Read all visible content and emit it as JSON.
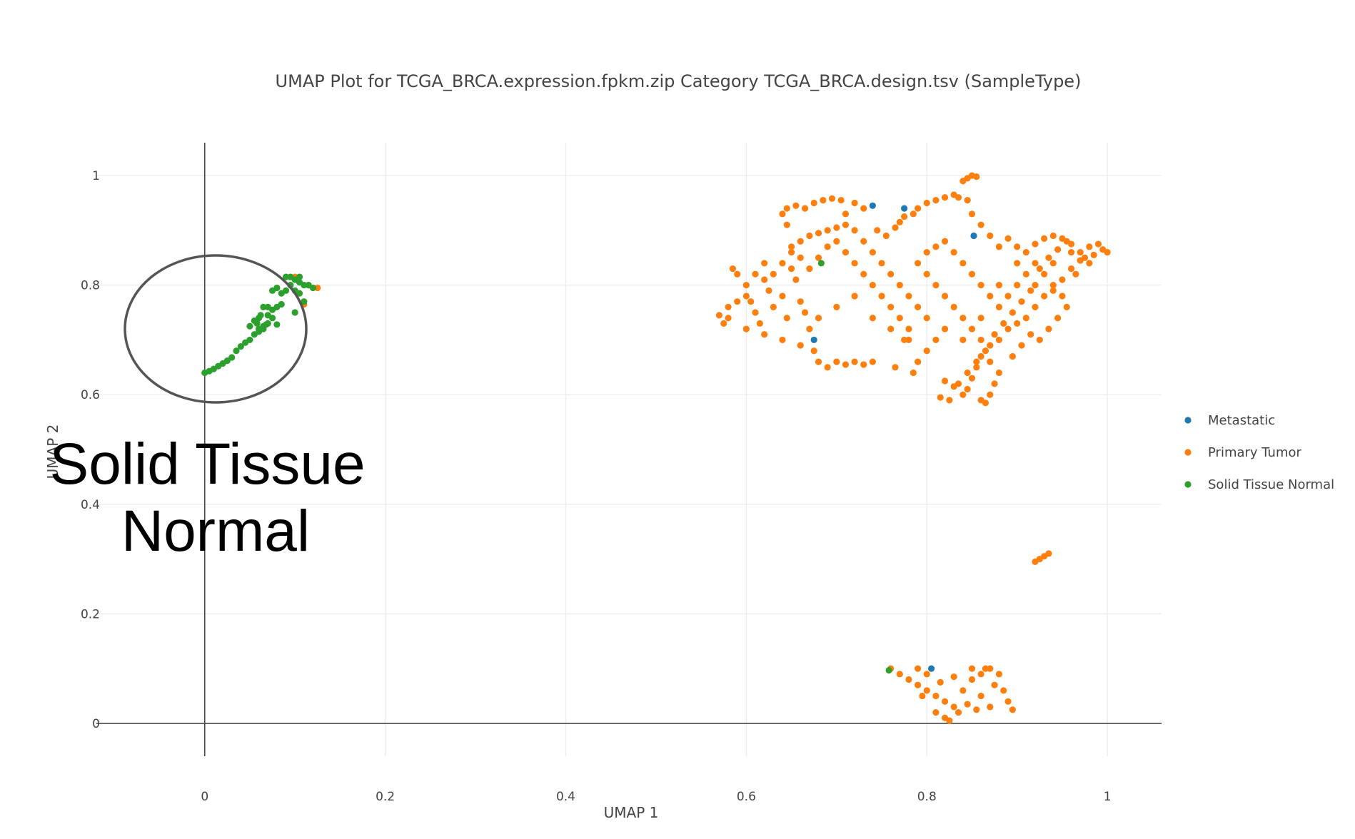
{
  "chart_data": {
    "type": "scatter",
    "title": "UMAP Plot for TCGA_BRCA.expression.fpkm.zip Category TCGA_BRCA.design.tsv (SampleType)",
    "xlabel": "UMAP 1",
    "ylabel": "UMAP 2",
    "xlim": [
      -0.12,
      1.06
    ],
    "ylim": [
      -0.06,
      1.06
    ],
    "x_ticks": [
      0,
      0.2,
      0.4,
      0.6,
      0.8,
      1
    ],
    "x_tick_labels": [
      "0",
      "0.2",
      "0.4",
      "0.6",
      "0.8",
      "1"
    ],
    "y_ticks": [
      0,
      0.2,
      0.4,
      0.6,
      0.8,
      1
    ],
    "y_tick_labels": [
      "0",
      "0.2",
      "0.4",
      "0.6",
      "0.8",
      "1"
    ],
    "grid": true,
    "legend_position": "right",
    "series": [
      {
        "name": "Metastatic",
        "color": "#1f77b4",
        "points": [
          [
            0.675,
            0.7
          ],
          [
            0.775,
            0.94
          ],
          [
            0.805,
            0.1
          ],
          [
            0.852,
            0.89
          ],
          [
            0.74,
            0.945
          ]
        ]
      },
      {
        "name": "Primary Tumor",
        "color": "#ff7f0e",
        "points": [
          [
            0.1,
            0.815
          ],
          [
            0.125,
            0.795
          ],
          [
            0.11,
            0.765
          ],
          [
            0.115,
            0.8
          ],
          [
            0.925,
            0.3
          ],
          [
            0.93,
            0.305
          ],
          [
            0.935,
            0.31
          ],
          [
            0.92,
            0.295
          ],
          [
            0.76,
            0.1
          ],
          [
            0.77,
            0.09
          ],
          [
            0.78,
            0.08
          ],
          [
            0.79,
            0.07
          ],
          [
            0.8,
            0.06
          ],
          [
            0.81,
            0.05
          ],
          [
            0.82,
            0.04
          ],
          [
            0.83,
            0.03
          ],
          [
            0.82,
            0.01
          ],
          [
            0.825,
            0.005
          ],
          [
            0.835,
            0.02
          ],
          [
            0.84,
            0.06
          ],
          [
            0.85,
            0.08
          ],
          [
            0.86,
            0.09
          ],
          [
            0.87,
            0.1
          ],
          [
            0.88,
            0.09
          ],
          [
            0.885,
            0.06
          ],
          [
            0.89,
            0.04
          ],
          [
            0.895,
            0.025
          ],
          [
            0.86,
            0.05
          ],
          [
            0.845,
            0.035
          ],
          [
            0.8,
            0.09
          ],
          [
            0.79,
            0.1
          ],
          [
            0.815,
            0.075
          ],
          [
            0.87,
            0.03
          ],
          [
            0.875,
            0.07
          ],
          [
            0.855,
            0.025
          ],
          [
            0.865,
            0.1
          ],
          [
            0.81,
            0.02
          ],
          [
            0.795,
            0.05
          ],
          [
            0.83,
            0.085
          ],
          [
            0.85,
            0.1
          ],
          [
            0.57,
            0.745
          ],
          [
            0.58,
            0.76
          ],
          [
            0.585,
            0.83
          ],
          [
            0.59,
            0.82
          ],
          [
            0.6,
            0.8
          ],
          [
            0.605,
            0.77
          ],
          [
            0.61,
            0.75
          ],
          [
            0.615,
            0.73
          ],
          [
            0.62,
            0.81
          ],
          [
            0.625,
            0.79
          ],
          [
            0.63,
            0.76
          ],
          [
            0.64,
            0.78
          ],
          [
            0.645,
            0.74
          ],
          [
            0.65,
            0.83
          ],
          [
            0.655,
            0.81
          ],
          [
            0.66,
            0.77
          ],
          [
            0.665,
            0.75
          ],
          [
            0.67,
            0.72
          ],
          [
            0.675,
            0.68
          ],
          [
            0.68,
            0.66
          ],
          [
            0.69,
            0.65
          ],
          [
            0.7,
            0.66
          ],
          [
            0.71,
            0.655
          ],
          [
            0.72,
            0.66
          ],
          [
            0.73,
            0.655
          ],
          [
            0.74,
            0.66
          ],
          [
            0.765,
            0.65
          ],
          [
            0.775,
            0.7
          ],
          [
            0.78,
            0.72
          ],
          [
            0.77,
            0.74
          ],
          [
            0.76,
            0.76
          ],
          [
            0.75,
            0.78
          ],
          [
            0.74,
            0.8
          ],
          [
            0.73,
            0.82
          ],
          [
            0.72,
            0.84
          ],
          [
            0.71,
            0.86
          ],
          [
            0.7,
            0.88
          ],
          [
            0.69,
            0.87
          ],
          [
            0.68,
            0.85
          ],
          [
            0.67,
            0.83
          ],
          [
            0.66,
            0.85
          ],
          [
            0.65,
            0.87
          ],
          [
            0.645,
            0.91
          ],
          [
            0.64,
            0.93
          ],
          [
            0.645,
            0.94
          ],
          [
            0.655,
            0.945
          ],
          [
            0.665,
            0.94
          ],
          [
            0.675,
            0.95
          ],
          [
            0.685,
            0.955
          ],
          [
            0.695,
            0.958
          ],
          [
            0.705,
            0.955
          ],
          [
            0.71,
            0.93
          ],
          [
            0.72,
            0.95
          ],
          [
            0.73,
            0.94
          ],
          [
            0.745,
            0.9
          ],
          [
            0.755,
            0.89
          ],
          [
            0.765,
            0.905
          ],
          [
            0.77,
            0.915
          ],
          [
            0.775,
            0.925
          ],
          [
            0.785,
            0.93
          ],
          [
            0.79,
            0.94
          ],
          [
            0.8,
            0.95
          ],
          [
            0.81,
            0.955
          ],
          [
            0.82,
            0.96
          ],
          [
            0.83,
            0.965
          ],
          [
            0.84,
            0.99
          ],
          [
            0.845,
            0.995
          ],
          [
            0.85,
            1.0
          ],
          [
            0.855,
            0.998
          ],
          [
            0.835,
            0.96
          ],
          [
            0.845,
            0.955
          ],
          [
            0.85,
            0.93
          ],
          [
            0.86,
            0.91
          ],
          [
            0.87,
            0.89
          ],
          [
            0.88,
            0.87
          ],
          [
            0.89,
            0.885
          ],
          [
            0.9,
            0.87
          ],
          [
            0.91,
            0.86
          ],
          [
            0.92,
            0.875
          ],
          [
            0.93,
            0.885
          ],
          [
            0.94,
            0.89
          ],
          [
            0.95,
            0.885
          ],
          [
            0.96,
            0.875
          ],
          [
            0.97,
            0.86
          ],
          [
            0.98,
            0.87
          ],
          [
            0.99,
            0.875
          ],
          [
            0.995,
            0.865
          ],
          [
            1.0,
            0.86
          ],
          [
            0.985,
            0.855
          ],
          [
            0.975,
            0.85
          ],
          [
            0.96,
            0.83
          ],
          [
            0.95,
            0.81
          ],
          [
            0.94,
            0.79
          ],
          [
            0.93,
            0.78
          ],
          [
            0.92,
            0.76
          ],
          [
            0.91,
            0.74
          ],
          [
            0.9,
            0.73
          ],
          [
            0.89,
            0.72
          ],
          [
            0.88,
            0.7
          ],
          [
            0.87,
            0.69
          ],
          [
            0.86,
            0.67
          ],
          [
            0.855,
            0.65
          ],
          [
            0.85,
            0.63
          ],
          [
            0.845,
            0.61
          ],
          [
            0.84,
            0.6
          ],
          [
            0.83,
            0.615
          ],
          [
            0.82,
            0.625
          ],
          [
            0.815,
            0.595
          ],
          [
            0.825,
            0.59
          ],
          [
            0.86,
            0.59
          ],
          [
            0.865,
            0.585
          ],
          [
            0.87,
            0.6
          ],
          [
            0.875,
            0.62
          ],
          [
            0.88,
            0.64
          ],
          [
            0.87,
            0.66
          ],
          [
            0.86,
            0.7
          ],
          [
            0.85,
            0.72
          ],
          [
            0.84,
            0.74
          ],
          [
            0.83,
            0.76
          ],
          [
            0.82,
            0.78
          ],
          [
            0.81,
            0.8
          ],
          [
            0.8,
            0.82
          ],
          [
            0.79,
            0.84
          ],
          [
            0.8,
            0.86
          ],
          [
            0.81,
            0.87
          ],
          [
            0.82,
            0.88
          ],
          [
            0.83,
            0.86
          ],
          [
            0.84,
            0.84
          ],
          [
            0.85,
            0.82
          ],
          [
            0.86,
            0.8
          ],
          [
            0.87,
            0.78
          ],
          [
            0.88,
            0.76
          ],
          [
            0.89,
            0.78
          ],
          [
            0.9,
            0.8
          ],
          [
            0.91,
            0.82
          ],
          [
            0.92,
            0.84
          ],
          [
            0.93,
            0.82
          ],
          [
            0.94,
            0.8
          ],
          [
            0.95,
            0.78
          ],
          [
            0.955,
            0.76
          ],
          [
            0.945,
            0.74
          ],
          [
            0.935,
            0.72
          ],
          [
            0.925,
            0.7
          ],
          [
            0.915,
            0.71
          ],
          [
            0.905,
            0.69
          ],
          [
            0.895,
            0.67
          ],
          [
            0.81,
            0.7
          ],
          [
            0.8,
            0.68
          ],
          [
            0.79,
            0.66
          ],
          [
            0.785,
            0.64
          ],
          [
            0.8,
            0.74
          ],
          [
            0.79,
            0.76
          ],
          [
            0.78,
            0.78
          ],
          [
            0.77,
            0.8
          ],
          [
            0.76,
            0.82
          ],
          [
            0.75,
            0.84
          ],
          [
            0.74,
            0.86
          ],
          [
            0.73,
            0.88
          ],
          [
            0.72,
            0.9
          ],
          [
            0.71,
            0.91
          ],
          [
            0.7,
            0.905
          ],
          [
            0.69,
            0.9
          ],
          [
            0.68,
            0.895
          ],
          [
            0.67,
            0.89
          ],
          [
            0.66,
            0.88
          ],
          [
            0.65,
            0.86
          ],
          [
            0.64,
            0.84
          ],
          [
            0.63,
            0.82
          ],
          [
            0.62,
            0.84
          ],
          [
            0.61,
            0.82
          ],
          [
            0.6,
            0.78
          ],
          [
            0.59,
            0.77
          ],
          [
            0.58,
            0.74
          ],
          [
            0.575,
            0.73
          ],
          [
            0.6,
            0.72
          ],
          [
            0.62,
            0.71
          ],
          [
            0.64,
            0.7
          ],
          [
            0.66,
            0.69
          ],
          [
            0.68,
            0.74
          ],
          [
            0.7,
            0.76
          ],
          [
            0.72,
            0.78
          ],
          [
            0.74,
            0.74
          ],
          [
            0.76,
            0.72
          ],
          [
            0.78,
            0.7
          ],
          [
            0.82,
            0.72
          ],
          [
            0.84,
            0.7
          ],
          [
            0.86,
            0.74
          ],
          [
            0.88,
            0.8
          ],
          [
            0.9,
            0.84
          ],
          [
            0.92,
            0.8
          ],
          [
            0.94,
            0.84
          ],
          [
            0.96,
            0.86
          ],
          [
            0.98,
            0.84
          ],
          [
            0.965,
            0.82
          ],
          [
            0.97,
            0.845
          ],
          [
            0.955,
            0.88
          ],
          [
            0.945,
            0.865
          ],
          [
            0.935,
            0.85
          ],
          [
            0.925,
            0.83
          ],
          [
            0.915,
            0.79
          ],
          [
            0.905,
            0.77
          ],
          [
            0.895,
            0.75
          ],
          [
            0.885,
            0.73
          ],
          [
            0.875,
            0.71
          ],
          [
            0.865,
            0.68
          ],
          [
            0.855,
            0.66
          ],
          [
            0.845,
            0.64
          ],
          [
            0.835,
            0.62
          ]
        ]
      },
      {
        "name": "Solid Tissue Normal",
        "color": "#2ca02c",
        "points": [
          [
            0.0,
            0.64
          ],
          [
            0.005,
            0.643
          ],
          [
            0.01,
            0.647
          ],
          [
            0.015,
            0.652
          ],
          [
            0.02,
            0.657
          ],
          [
            0.025,
            0.662
          ],
          [
            0.03,
            0.668
          ],
          [
            0.035,
            0.68
          ],
          [
            0.04,
            0.688
          ],
          [
            0.045,
            0.695
          ],
          [
            0.05,
            0.7
          ],
          [
            0.055,
            0.71
          ],
          [
            0.06,
            0.72
          ],
          [
            0.065,
            0.725
          ],
          [
            0.07,
            0.73
          ],
          [
            0.05,
            0.725
          ],
          [
            0.055,
            0.735
          ],
          [
            0.06,
            0.74
          ],
          [
            0.065,
            0.72
          ],
          [
            0.06,
            0.715
          ],
          [
            0.07,
            0.745
          ],
          [
            0.075,
            0.755
          ],
          [
            0.08,
            0.76
          ],
          [
            0.085,
            0.765
          ],
          [
            0.09,
            0.79
          ],
          [
            0.085,
            0.785
          ],
          [
            0.08,
            0.795
          ],
          [
            0.095,
            0.8
          ],
          [
            0.1,
            0.81
          ],
          [
            0.105,
            0.805
          ],
          [
            0.11,
            0.8
          ],
          [
            0.09,
            0.815
          ],
          [
            0.095,
            0.815
          ],
          [
            0.1,
            0.79
          ],
          [
            0.105,
            0.785
          ],
          [
            0.11,
            0.77
          ],
          [
            0.1,
            0.75
          ],
          [
            0.075,
            0.74
          ],
          [
            0.07,
            0.76
          ],
          [
            0.065,
            0.76
          ],
          [
            0.12,
            0.795
          ],
          [
            0.115,
            0.8
          ],
          [
            0.075,
            0.79
          ],
          [
            0.105,
            0.815
          ],
          [
            0.058,
            0.73
          ],
          [
            0.062,
            0.745
          ],
          [
            0.068,
            0.728
          ],
          [
            0.08,
            0.728
          ],
          [
            0.683,
            0.84
          ],
          [
            0.758,
            0.097
          ]
        ]
      }
    ],
    "annotations": [
      {
        "text_lines": [
          "Solid Tissue",
          "Normal"
        ]
      }
    ]
  }
}
